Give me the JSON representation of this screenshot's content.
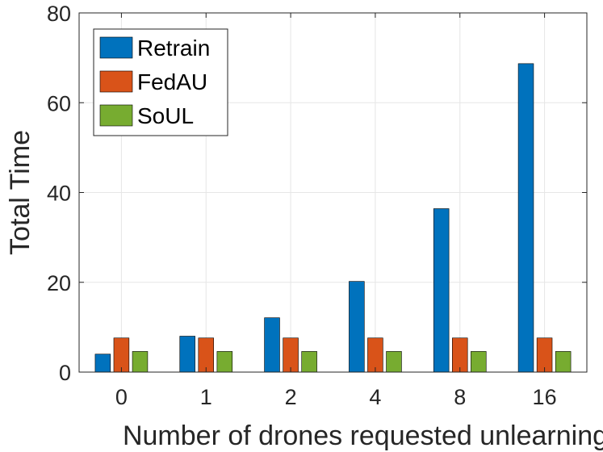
{
  "chart_data": {
    "type": "bar",
    "title": "",
    "xlabel": "Number of drones requested unlearning",
    "ylabel": "Total Time",
    "categories": [
      "0",
      "1",
      "2",
      "4",
      "8",
      "16"
    ],
    "series": [
      {
        "name": "Retrain",
        "color": "#0072BD",
        "values": [
          4.0,
          8.0,
          12.1,
          20.2,
          36.4,
          68.7
        ]
      },
      {
        "name": "FedAU",
        "color": "#D95319",
        "values": [
          7.6,
          7.6,
          7.6,
          7.6,
          7.6,
          7.6
        ]
      },
      {
        "name": "SoUL",
        "color": "#77AC30",
        "values": [
          4.6,
          4.6,
          4.6,
          4.6,
          4.6,
          4.6
        ]
      }
    ],
    "ylim": [
      0,
      80
    ],
    "yticks": [
      "0",
      "20",
      "40",
      "60",
      "80"
    ],
    "grid": true,
    "legend_position": "top-left"
  }
}
